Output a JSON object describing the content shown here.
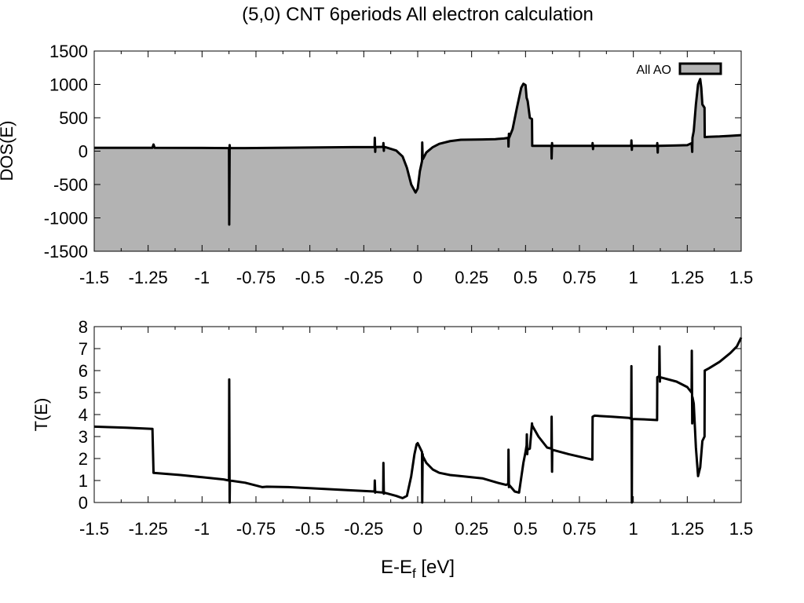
{
  "title": "(5,0) CNT 6periods All electron calculation",
  "chart_data": [
    {
      "type": "area",
      "ylabel": "DOS(E)",
      "xlim": [
        -1.5,
        1.5
      ],
      "ylim": [
        -1500,
        1500
      ],
      "xticks": [
        "-1.5",
        "-1.25",
        "-1",
        "-0.75",
        "-0.5",
        "-0.25",
        "0",
        "0.25",
        "0.5",
        "0.75",
        "1",
        "1.25",
        "1.5"
      ],
      "yticks": [
        "1500",
        "1000",
        "500",
        "0",
        "-500",
        "-1000",
        "-1500"
      ],
      "legend": "All AO",
      "legend_position": "top-right",
      "fill_color": "#b3b3b3",
      "fill_baseline": -1500,
      "series": [
        {
          "name": "All AO",
          "x": [
            -1.5,
            -1.23,
            -1.225,
            -1.22,
            -1.0,
            -0.875,
            -0.874,
            -0.872,
            -0.871,
            -0.8,
            -0.7,
            -0.5,
            -0.3,
            -0.2,
            -0.199,
            -0.197,
            -0.196,
            -0.16,
            -0.159,
            -0.157,
            -0.156,
            -0.15,
            -0.1,
            -0.07,
            -0.05,
            -0.03,
            -0.01,
            0.0,
            0.01,
            0.02,
            0.021,
            0.023,
            0.024,
            0.04,
            0.07,
            0.1,
            0.15,
            0.2,
            0.3,
            0.36,
            0.4,
            0.42,
            0.421,
            0.423,
            0.424,
            0.44,
            0.46,
            0.48,
            0.49,
            0.5,
            0.505,
            0.51,
            0.52,
            0.53,
            0.531,
            0.55,
            0.6,
            0.62,
            0.621,
            0.623,
            0.624,
            0.7,
            0.81,
            0.811,
            0.813,
            0.814,
            0.9,
            0.99,
            0.991,
            0.993,
            0.994,
            1.06,
            1.11,
            1.111,
            1.113,
            1.114,
            1.2,
            1.25,
            1.27,
            1.271,
            1.273,
            1.274,
            1.28,
            1.29,
            1.3,
            1.31,
            1.315,
            1.32,
            1.33,
            1.331,
            1.35,
            1.4,
            1.45,
            1.5
          ],
          "y": [
            50,
            50,
            100,
            50,
            48,
            45,
            -1100,
            90,
            45,
            45,
            48,
            55,
            60,
            62,
            200,
            -10,
            62,
            65,
            120,
            5,
            65,
            60,
            10,
            -80,
            -250,
            -500,
            -620,
            -560,
            -300,
            -150,
            130,
            -100,
            -120,
            -20,
            60,
            110,
            150,
            170,
            175,
            180,
            190,
            200,
            70,
            260,
            200,
            330,
            650,
            950,
            1010,
            990,
            800,
            750,
            500,
            480,
            80,
            80,
            80,
            80,
            -110,
            120,
            80,
            80,
            80,
            120,
            30,
            80,
            80,
            80,
            160,
            20,
            80,
            80,
            80,
            120,
            -20,
            80,
            85,
            90,
            120,
            90,
            -10,
            200,
            300,
            700,
            1000,
            1080,
            950,
            700,
            650,
            210,
            215,
            220,
            230,
            240
          ]
        }
      ]
    },
    {
      "type": "line",
      "ylabel": "T(E)",
      "xlabel_main": "E-E",
      "xlabel_sub": "f",
      "xlabel_tail": " [eV]",
      "xlim": [
        -1.5,
        1.5
      ],
      "ylim": [
        0,
        8
      ],
      "xticks": [
        "-1.5",
        "-1.25",
        "-1",
        "-0.75",
        "-0.5",
        "-0.25",
        "0",
        "0.25",
        "0.5",
        "0.75",
        "1",
        "1.25",
        "1.5"
      ],
      "yticks": [
        "8",
        "7",
        "6",
        "5",
        "4",
        "3",
        "2",
        "1",
        "0"
      ],
      "series": [
        {
          "name": "T(E)",
          "x": [
            -1.5,
            -1.35,
            -1.23,
            -1.225,
            -1.1,
            -1.0,
            -0.9,
            -0.875,
            -0.874,
            -0.872,
            -0.871,
            -0.8,
            -0.72,
            -0.7,
            -0.6,
            -0.5,
            -0.3,
            -0.2,
            -0.199,
            -0.197,
            -0.196,
            -0.16,
            -0.159,
            -0.157,
            -0.156,
            -0.1,
            -0.07,
            -0.05,
            -0.03,
            -0.015,
            -0.005,
            0.0,
            0.01,
            0.02,
            0.021,
            0.023,
            0.024,
            0.04,
            0.07,
            0.1,
            0.15,
            0.2,
            0.3,
            0.37,
            0.41,
            0.42,
            0.421,
            0.423,
            0.424,
            0.45,
            0.47,
            0.49,
            0.5,
            0.505,
            0.506,
            0.508,
            0.509,
            0.52,
            0.53,
            0.531,
            0.56,
            0.6,
            0.62,
            0.621,
            0.623,
            0.624,
            0.7,
            0.81,
            0.811,
            0.82,
            0.9,
            0.98,
            0.99,
            0.991,
            0.993,
            0.994,
            1.05,
            1.11,
            1.111,
            1.12,
            1.121,
            1.123,
            1.124,
            1.2,
            1.25,
            1.27,
            1.271,
            1.273,
            1.274,
            1.28,
            1.29,
            1.3,
            1.31,
            1.32,
            1.33,
            1.331,
            1.35,
            1.4,
            1.45,
            1.48,
            1.5
          ],
          "y": [
            3.45,
            3.4,
            3.35,
            1.35,
            1.25,
            1.15,
            1.05,
            1.0,
            5.6,
            0.0,
            1.0,
            0.9,
            0.7,
            0.72,
            0.7,
            0.65,
            0.55,
            0.5,
            1.0,
            0.45,
            0.48,
            0.45,
            1.8,
            0.4,
            0.45,
            0.3,
            0.2,
            0.3,
            1.2,
            2.2,
            2.65,
            2.7,
            2.5,
            2.3,
            0.0,
            2.2,
            2.1,
            1.8,
            1.5,
            1.35,
            1.25,
            1.2,
            1.1,
            0.9,
            0.8,
            0.85,
            2.4,
            0.7,
            0.8,
            0.5,
            0.45,
            1.8,
            2.3,
            2.6,
            3.1,
            2.2,
            2.4,
            2.45,
            3.6,
            3.5,
            3.0,
            2.5,
            2.45,
            3.9,
            1.4,
            2.4,
            2.2,
            1.95,
            3.9,
            3.95,
            3.9,
            3.85,
            3.8,
            6.2,
            0.0,
            3.8,
            3.78,
            3.75,
            5.7,
            5.75,
            7.1,
            5.5,
            5.7,
            5.5,
            5.25,
            5.0,
            6.9,
            3.6,
            4.8,
            4.5,
            2.5,
            1.2,
            1.6,
            2.8,
            3.0,
            6.0,
            6.1,
            6.4,
            6.8,
            7.1,
            7.5
          ]
        }
      ]
    }
  ]
}
